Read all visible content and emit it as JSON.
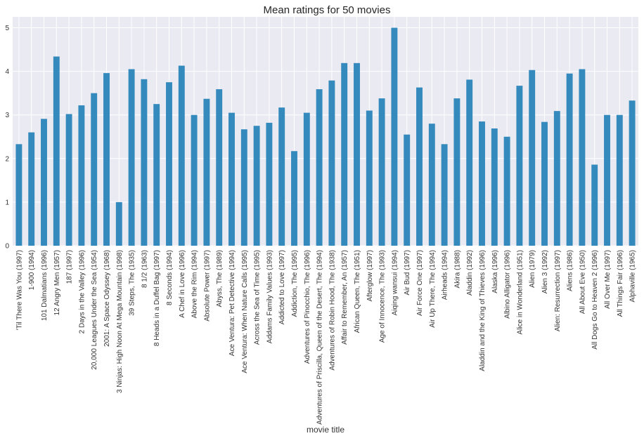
{
  "chart_data": {
    "type": "bar",
    "title": "Mean ratings for 50 movies",
    "xlabel": "movie title",
    "ylabel": "",
    "ylim": [
      0,
      5.25
    ],
    "yticks": [
      0,
      1,
      2,
      3,
      4,
      5
    ],
    "grid": true,
    "legend": "none",
    "colors": {
      "bar": "#348abd",
      "plot_bg": "#eaeaf2",
      "grid": "#ffffff",
      "text": "#333333",
      "title": "#262626"
    },
    "categories": [
      "'Til There Was You (1997)",
      "1-900 (1994)",
      "101 Dalmatians (1996)",
      "12 Angry Men (1957)",
      "187 (1997)",
      "2 Days in the Valley (1996)",
      "20,000 Leagues Under the Sea (1954)",
      "2001: A Space Odyssey (1968)",
      "3 Ninjas: High Noon At Mega Mountain (1998)",
      "39 Steps, The (1935)",
      "8 1/2 (1963)",
      "8 Heads in a Duffel Bag (1997)",
      "8 Seconds (1994)",
      "A Chef in Love (1996)",
      "Above the Rim (1994)",
      "Absolute Power (1997)",
      "Abyss, The (1989)",
      "Ace Ventura: Pet Detective (1994)",
      "Ace Ventura: When Nature Calls (1995)",
      "Across the Sea of Time (1995)",
      "Addams Family Values (1993)",
      "Addicted to Love (1997)",
      "Addiction, The (1995)",
      "Adventures of Pinocchio, The (1996)",
      "Adventures of Priscilla, Queen of the Desert, The (1994)",
      "Adventures of Robin Hood, The (1938)",
      "Affair to Remember, An (1957)",
      "African Queen, The (1951)",
      "Afterglow (1997)",
      "Age of Innocence, The (1993)",
      "Aiqing wansui (1994)",
      "Air Bud (1997)",
      "Air Force One (1997)",
      "Air Up There, The (1994)",
      "Airheads (1994)",
      "Akira (1988)",
      "Aladdin (1992)",
      "Aladdin and the King of Thieves (1996)",
      "Alaska (1996)",
      "Albino Alligator (1996)",
      "Alice in Wonderland (1951)",
      "Alien (1979)",
      "Alien 3 (1992)",
      "Alien: Resurrection (1997)",
      "Aliens (1986)",
      "All About Eve (1950)",
      "All Dogs Go to Heaven 2 (1996)",
      "All Over Me (1997)",
      "All Things Fair (1996)",
      "Alphaville (1965)"
    ],
    "values": [
      2.33,
      2.6,
      2.91,
      4.34,
      3.02,
      3.22,
      3.5,
      3.96,
      1.0,
      4.05,
      3.82,
      3.25,
      3.75,
      4.13,
      3.0,
      3.37,
      3.59,
      3.05,
      2.67,
      2.75,
      2.82,
      3.17,
      2.17,
      3.05,
      3.59,
      3.79,
      4.19,
      4.19,
      3.1,
      3.38,
      5.0,
      2.55,
      3.63,
      2.8,
      2.33,
      3.38,
      3.81,
      2.85,
      2.69,
      2.5,
      3.67,
      4.03,
      2.84,
      3.09,
      3.95,
      4.05,
      1.86,
      3.0,
      3.0,
      3.33
    ]
  }
}
